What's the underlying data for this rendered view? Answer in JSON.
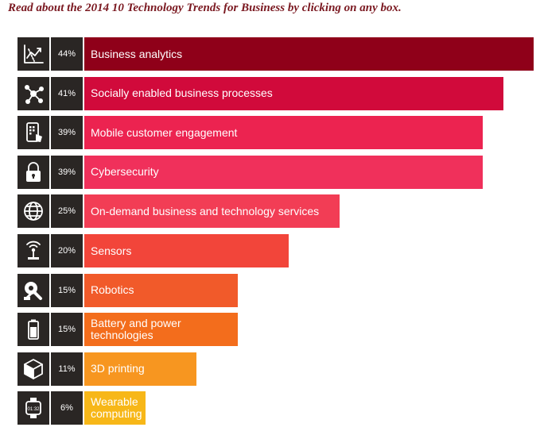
{
  "header": {
    "intro": "Read about the 2014 10 Technology Trends for Business by clicking on any box."
  },
  "chart_data": {
    "type": "bar",
    "orientation": "horizontal",
    "categories": [
      "Business analytics",
      "Socially enabled business processes",
      "Mobile customer engagement",
      "Cybersecurity",
      "On-demand business and technology services",
      "Sensors",
      "Robotics",
      "Battery and power technologies",
      "3D printing",
      "Wearable computing"
    ],
    "values": [
      44,
      41,
      39,
      39,
      25,
      20,
      15,
      15,
      11,
      6
    ],
    "value_labels": [
      "44%",
      "41%",
      "39%",
      "39%",
      "25%",
      "20%",
      "15%",
      "15%",
      "11%",
      "6%"
    ],
    "label_lines": [
      [
        "Business analytics"
      ],
      [
        "Socially enabled business processes"
      ],
      [
        "Mobile customer engagement"
      ],
      [
        "Cybersecurity"
      ],
      [
        "On-demand business and technology services"
      ],
      [
        "Sensors"
      ],
      [
        "Robotics"
      ],
      [
        "Battery and power",
        "technologies"
      ],
      [
        "3D printing"
      ],
      [
        "Wearable",
        "computing"
      ]
    ],
    "icons": [
      "analytics-icon",
      "social-network-icon",
      "mobile-phone-icon",
      "padlock-icon",
      "globe-icon",
      "sensor-icon",
      "robotic-arm-icon",
      "battery-icon",
      "cube-icon",
      "smartwatch-icon"
    ],
    "colors": [
      "#8f0019",
      "#d10a3b",
      "#ec2350",
      "#f0305b",
      "#f23d55",
      "#f2453a",
      "#f15a2a",
      "#f36d1c",
      "#f79620",
      "#f7b718"
    ],
    "unit": "%",
    "xlim": [
      0,
      44
    ]
  }
}
